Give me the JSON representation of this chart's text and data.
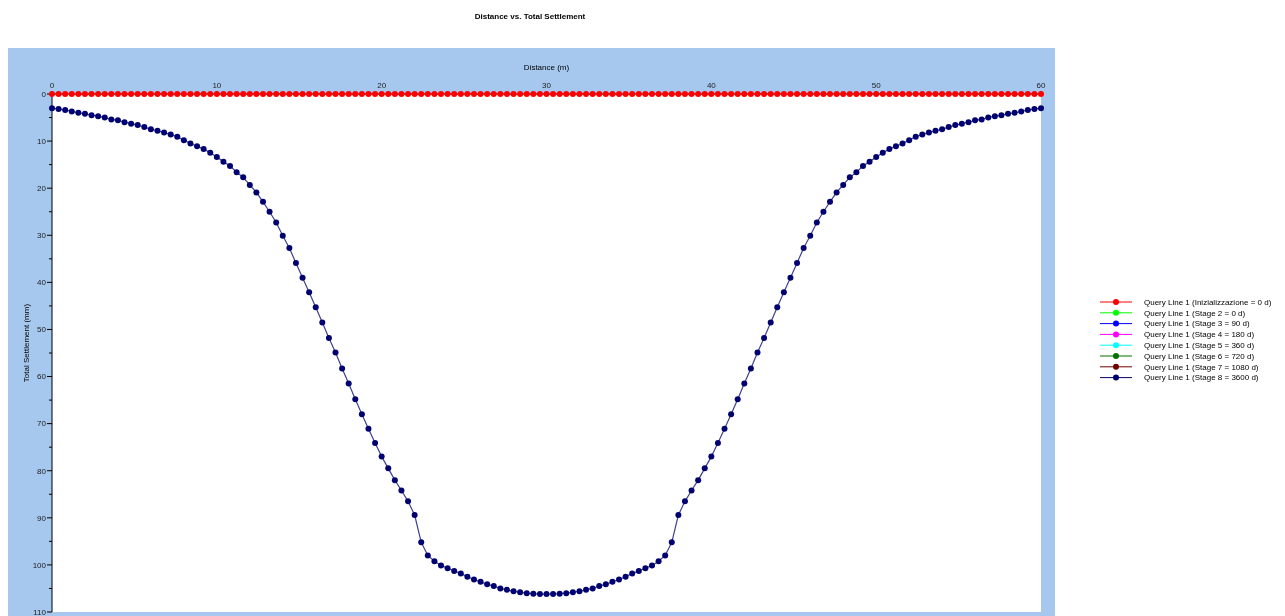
{
  "chart_data": {
    "type": "line",
    "title": "Distance vs. Total Settlement",
    "xlabel": "Distance (m)",
    "ylabel": "Total Settlement (mm)",
    "xlim": [
      0,
      60
    ],
    "xticks": [
      0,
      10,
      20,
      30,
      40,
      50,
      60
    ],
    "ylim": [
      110,
      0
    ],
    "yticks": [
      0,
      {
        "value": 5,
        "label": null
      },
      10,
      {
        "value": 15,
        "label": null
      },
      20,
      {
        "value": 25,
        "label": null
      },
      30,
      {
        "value": 35,
        "label": null
      },
      40,
      {
        "value": 45,
        "label": null
      },
      50,
      {
        "value": 55,
        "label": null
      },
      60,
      {
        "value": 65,
        "label": null
      },
      70,
      {
        "value": 75,
        "label": null
      },
      80,
      {
        "value": 85,
        "label": null
      },
      90,
      {
        "value": 95,
        "label": null
      },
      100,
      {
        "value": 105,
        "label": null
      },
      110
    ],
    "x": [
      0,
      0.4,
      0.8,
      1.2,
      1.6,
      2.0,
      2.4,
      2.8,
      3.2,
      3.6,
      4.0,
      4.4,
      4.8,
      5.2,
      5.6,
      6.0,
      6.4,
      6.8,
      7.2,
      7.6,
      8.0,
      8.4,
      8.8,
      9.2,
      9.6,
      10.0,
      10.4,
      10.8,
      11.2,
      11.6,
      12.0,
      12.4,
      12.8,
      13.2,
      13.6,
      14.0,
      14.4,
      14.8,
      15.2,
      15.6,
      16.0,
      16.4,
      16.8,
      17.2,
      17.6,
      18.0,
      18.4,
      18.8,
      19.2,
      19.6,
      20.0,
      20.4,
      20.8,
      21.2,
      21.6,
      22.0,
      22.4,
      22.8,
      23.2,
      23.6,
      24.0,
      24.4,
      24.8,
      25.2,
      25.6,
      26.0,
      26.4,
      26.8,
      27.2,
      27.6,
      28.0,
      28.4,
      28.8,
      29.2,
      29.6,
      30.0,
      30.4,
      30.8,
      31.2,
      31.6,
      32.0,
      32.4,
      32.8,
      33.2,
      33.6,
      34.0,
      34.4,
      34.8,
      35.2,
      35.6,
      36.0,
      36.4,
      36.8,
      37.2,
      37.6,
      38.0,
      38.4,
      38.8,
      39.2,
      39.6,
      40.0,
      40.4,
      40.8,
      41.2,
      41.6,
      42.0,
      42.4,
      42.8,
      43.2,
      43.6,
      44.0,
      44.4,
      44.8,
      45.2,
      45.6,
      46.0,
      46.4,
      46.8,
      47.2,
      47.6,
      48.0,
      48.4,
      48.8,
      49.2,
      49.6,
      50.0,
      50.4,
      50.8,
      51.2,
      51.6,
      52.0,
      52.4,
      52.8,
      53.2,
      53.6,
      54.0,
      54.4,
      54.8,
      55.2,
      55.6,
      56.0,
      56.4,
      56.8,
      57.2,
      57.6,
      58.0,
      58.4,
      58.8,
      59.2,
      59.6,
      60.0
    ],
    "marker": "circle",
    "line_style": "solid",
    "grid": false,
    "legend": "right",
    "series": [
      {
        "name": "Query Line 1 (Inizializzazione = 0 d)",
        "color": "#ff0000",
        "values": [
          0,
          0,
          0,
          0,
          0,
          0,
          0,
          0,
          0,
          0,
          0,
          0,
          0,
          0,
          0,
          0,
          0,
          0,
          0,
          0,
          0,
          0,
          0,
          0,
          0,
          0,
          0,
          0,
          0,
          0,
          0,
          0,
          0,
          0,
          0,
          0,
          0,
          0,
          0,
          0,
          0,
          0,
          0,
          0,
          0,
          0,
          0,
          0,
          0,
          0,
          0,
          0,
          0,
          0,
          0,
          0,
          0,
          0,
          0,
          0,
          0,
          0,
          0,
          0,
          0,
          0,
          0,
          0,
          0,
          0,
          0,
          0,
          0,
          0,
          0,
          0,
          0,
          0,
          0,
          0,
          0,
          0,
          0,
          0,
          0,
          0,
          0,
          0,
          0,
          0,
          0,
          0,
          0,
          0,
          0,
          0,
          0,
          0,
          0,
          0,
          0,
          0,
          0,
          0,
          0,
          0,
          0,
          0,
          0,
          0,
          0,
          0,
          0,
          0,
          0,
          0,
          0,
          0,
          0,
          0,
          0,
          0,
          0,
          0,
          0,
          0,
          0,
          0,
          0,
          0,
          0,
          0,
          0,
          0,
          0,
          0,
          0,
          0,
          0,
          0,
          0,
          0,
          0,
          0,
          0,
          0,
          0,
          0,
          0,
          0,
          0
        ]
      },
      {
        "name": "Query Line 1 (Stage 2 = 0 d)",
        "color": "#00ff00",
        "values": [
          null,
          null,
          null,
          null,
          null,
          null,
          null,
          null,
          null,
          null,
          null,
          null,
          null,
          null,
          null,
          null,
          null,
          null,
          null,
          null,
          null,
          null,
          null,
          null,
          null,
          null,
          null,
          null,
          null,
          null,
          null,
          null,
          null,
          null,
          null,
          null,
          null,
          null,
          null,
          null,
          null,
          null,
          null,
          null,
          null,
          null,
          null,
          null,
          null,
          null,
          null,
          null,
          null,
          null,
          null,
          null,
          null,
          null,
          null,
          null,
          null,
          null,
          null,
          null,
          null,
          null,
          null,
          null,
          null,
          null,
          null,
          null,
          null,
          null,
          null,
          null,
          null,
          null,
          null,
          null,
          null,
          null,
          null,
          null,
          null,
          null,
          null,
          null,
          null,
          null,
          null,
          null,
          null,
          null,
          null,
          null,
          null,
          null,
          null,
          null,
          null,
          null,
          null,
          null,
          null,
          null,
          null,
          null,
          null,
          null,
          null,
          null,
          null,
          null,
          null,
          null,
          null,
          null,
          null,
          null,
          null,
          null,
          null,
          null,
          null,
          null,
          null,
          null,
          null,
          null,
          null,
          null,
          null,
          null,
          null,
          null,
          null,
          null,
          null,
          null,
          null,
          null,
          null,
          null,
          null,
          null,
          null,
          null,
          null,
          null,
          null
        ]
      },
      {
        "name": "Query Line 1 (Stage 3 = 90 d)",
        "color": "#0000ff",
        "values": [
          null,
          null,
          null,
          null,
          null,
          null,
          null,
          null,
          null,
          null,
          null,
          null,
          null,
          null,
          null,
          null,
          null,
          null,
          null,
          null,
          null,
          null,
          null,
          null,
          null,
          null,
          null,
          null,
          null,
          null,
          null,
          null,
          null,
          null,
          null,
          null,
          null,
          null,
          null,
          null,
          null,
          null,
          null,
          null,
          null,
          null,
          null,
          null,
          null,
          null,
          null,
          null,
          null,
          null,
          null,
          null,
          null,
          null,
          null,
          null,
          null,
          null,
          null,
          null,
          null,
          null,
          null,
          null,
          null,
          null,
          null,
          null,
          null,
          null,
          null,
          null,
          null,
          null,
          null,
          null,
          null,
          null,
          null,
          null,
          null,
          null,
          null,
          null,
          null,
          null,
          null,
          null,
          null,
          null,
          null,
          null,
          null,
          null,
          null,
          null,
          null,
          null,
          null,
          null,
          null,
          null,
          null,
          null,
          null,
          null,
          null,
          null,
          null,
          null,
          null,
          null,
          null,
          null,
          null,
          null,
          null,
          null,
          null,
          null,
          null,
          null,
          null,
          null,
          null,
          null,
          null,
          null,
          null,
          null,
          null,
          null,
          null,
          null,
          null,
          null,
          null,
          null,
          null,
          null,
          null,
          null,
          null,
          null,
          null,
          null,
          null
        ]
      },
      {
        "name": "Query Line 1 (Stage 4 = 180 d)",
        "color": "#ff00ff",
        "values": [
          null,
          null,
          null,
          null,
          null,
          null,
          null,
          null,
          null,
          null,
          null,
          null,
          null,
          null,
          null,
          null,
          null,
          null,
          null,
          null,
          null,
          null,
          null,
          null,
          null,
          null,
          null,
          null,
          null,
          null,
          null,
          null,
          null,
          null,
          null,
          null,
          null,
          null,
          null,
          null,
          null,
          null,
          null,
          null,
          null,
          null,
          null,
          null,
          null,
          null,
          null,
          null,
          null,
          null,
          null,
          null,
          null,
          null,
          null,
          null,
          null,
          null,
          null,
          null,
          null,
          null,
          null,
          null,
          null,
          null,
          null,
          null,
          null,
          null,
          null,
          null,
          null,
          null,
          null,
          null,
          null,
          null,
          null,
          null,
          null,
          null,
          null,
          null,
          null,
          null,
          null,
          null,
          null,
          null,
          null,
          null,
          null,
          null,
          null,
          null,
          null,
          null,
          null,
          null,
          null,
          null,
          null,
          null,
          null,
          null,
          null,
          null,
          null,
          null,
          null,
          null,
          null,
          null,
          null,
          null,
          null,
          null,
          null,
          null,
          null,
          null,
          null,
          null,
          null,
          null,
          null,
          null,
          null,
          null,
          null,
          null,
          null,
          null,
          null,
          null,
          null,
          null,
          null,
          null,
          null,
          null,
          null,
          null,
          null,
          null,
          null
        ]
      },
      {
        "name": "Query Line 1 (Stage 5 = 360 d)",
        "color": "#00ffff",
        "values": [
          null,
          null,
          null,
          null,
          null,
          null,
          null,
          null,
          null,
          null,
          null,
          null,
          null,
          null,
          null,
          null,
          null,
          null,
          null,
          null,
          null,
          null,
          null,
          null,
          null,
          null,
          null,
          null,
          null,
          null,
          null,
          null,
          null,
          null,
          null,
          null,
          null,
          null,
          null,
          null,
          null,
          null,
          null,
          null,
          null,
          null,
          null,
          null,
          null,
          null,
          null,
          null,
          null,
          null,
          null,
          null,
          null,
          null,
          null,
          null,
          null,
          null,
          null,
          null,
          null,
          null,
          null,
          null,
          null,
          null,
          null,
          null,
          null,
          null,
          null,
          null,
          null,
          null,
          null,
          null,
          null,
          null,
          null,
          null,
          null,
          null,
          null,
          null,
          null,
          null,
          null,
          null,
          null,
          null,
          null,
          null,
          null,
          null,
          null,
          null,
          null,
          null,
          null,
          null,
          null,
          null,
          null,
          null,
          null,
          null,
          null,
          null,
          null,
          null,
          null,
          null,
          null,
          null,
          null,
          null,
          null,
          null,
          null,
          null,
          null,
          null,
          null,
          null,
          null,
          null,
          null,
          null,
          null,
          null,
          null,
          null,
          null,
          null,
          null,
          null,
          null,
          null,
          null,
          null,
          null,
          null,
          null,
          null,
          null,
          null,
          null
        ]
      },
      {
        "name": "Query Line 1 (Stage 6 = 720 d)",
        "color": "#007000",
        "values": [
          null,
          null,
          null,
          null,
          null,
          null,
          null,
          null,
          null,
          null,
          null,
          null,
          null,
          null,
          null,
          null,
          null,
          null,
          null,
          null,
          null,
          null,
          null,
          null,
          null,
          null,
          null,
          null,
          null,
          null,
          null,
          null,
          null,
          null,
          null,
          null,
          null,
          null,
          null,
          null,
          null,
          null,
          null,
          null,
          null,
          null,
          null,
          null,
          null,
          null,
          null,
          null,
          null,
          null,
          null,
          null,
          null,
          null,
          null,
          null,
          null,
          null,
          null,
          null,
          null,
          null,
          null,
          null,
          null,
          null,
          null,
          null,
          null,
          null,
          null,
          null,
          null,
          null,
          null,
          null,
          null,
          null,
          null,
          null,
          null,
          null,
          null,
          null,
          null,
          null,
          null,
          null,
          null,
          null,
          null,
          null,
          null,
          null,
          null,
          null,
          null,
          null,
          null,
          null,
          null,
          null,
          null,
          null,
          null,
          null,
          null,
          null,
          null,
          null,
          null,
          null,
          null,
          null,
          null,
          null,
          null,
          null,
          null,
          null,
          null,
          null,
          null,
          null,
          null,
          null,
          null,
          null,
          null,
          null,
          null,
          null,
          null,
          null,
          null,
          null,
          null,
          null,
          null,
          null,
          null,
          null,
          null,
          null,
          null,
          null,
          null
        ]
      },
      {
        "name": "Query Line 1 (Stage 7 = 1080 d)",
        "color": "#700000",
        "values": [
          null,
          null,
          null,
          null,
          null,
          null,
          null,
          null,
          null,
          null,
          null,
          null,
          null,
          null,
          null,
          null,
          null,
          null,
          null,
          null,
          null,
          null,
          null,
          null,
          null,
          null,
          null,
          null,
          null,
          null,
          null,
          null,
          null,
          null,
          null,
          null,
          null,
          null,
          null,
          null,
          null,
          null,
          null,
          null,
          null,
          null,
          null,
          null,
          null,
          null,
          null,
          null,
          null,
          null,
          null,
          null,
          null,
          null,
          null,
          null,
          null,
          null,
          null,
          null,
          null,
          null,
          null,
          null,
          null,
          null,
          null,
          null,
          null,
          null,
          null,
          null,
          null,
          null,
          null,
          null,
          null,
          null,
          null,
          null,
          null,
          null,
          null,
          null,
          null,
          null,
          null,
          null,
          null,
          null,
          null,
          null,
          null,
          null,
          null,
          null,
          null,
          null,
          null,
          null,
          null,
          null,
          null,
          null,
          null,
          null,
          null,
          null,
          null,
          null,
          null,
          null,
          null,
          null,
          null,
          null,
          null,
          null,
          null,
          null,
          null,
          null,
          null,
          null,
          null,
          null,
          null,
          null,
          null,
          null,
          null,
          null,
          null,
          null,
          null,
          null,
          null,
          null,
          null,
          null,
          null,
          null,
          null,
          null,
          null,
          null,
          null
        ]
      },
      {
        "name": "Query Line 1 (Stage 8 = 3600 d)",
        "color": "#000070",
        "values": [
          3.0,
          3.2,
          3.4,
          3.7,
          4.0,
          4.2,
          4.5,
          4.7,
          5.0,
          5.4,
          5.6,
          6.0,
          6.3,
          6.6,
          7.0,
          7.5,
          7.8,
          8.2,
          8.6,
          9.1,
          9.8,
          10.5,
          11.1,
          11.7,
          12.5,
          13.4,
          14.4,
          15.3,
          16.6,
          17.7,
          19.3,
          20.9,
          22.9,
          25.0,
          27.3,
          30.1,
          32.7,
          35.9,
          39.0,
          42.1,
          45.3,
          48.5,
          51.8,
          54.9,
          58.3,
          61.5,
          64.8,
          68.0,
          71.1,
          74.1,
          77.0,
          79.5,
          82.0,
          84.2,
          86.5,
          89.4,
          95.2,
          98.0,
          99.2,
          100.1,
          100.7,
          101.3,
          101.8,
          102.5,
          103.1,
          103.6,
          104.1,
          104.5,
          105.0,
          105.3,
          105.6,
          105.8,
          106.0,
          106.1,
          106.2,
          106.2,
          106.2,
          106.1,
          106.0,
          105.8,
          105.6,
          105.3,
          105.0,
          104.5,
          104.1,
          103.6,
          103.1,
          102.5,
          101.8,
          101.3,
          100.7,
          100.1,
          99.2,
          98.0,
          95.2,
          89.4,
          86.5,
          84.2,
          82.0,
          79.5,
          77.0,
          74.1,
          71.1,
          68.0,
          64.8,
          61.5,
          58.3,
          54.9,
          51.8,
          48.5,
          45.3,
          42.1,
          39.0,
          35.9,
          32.7,
          30.1,
          27.3,
          25.0,
          22.9,
          20.9,
          19.3,
          17.7,
          16.6,
          15.3,
          14.4,
          13.4,
          12.5,
          11.7,
          11.1,
          10.5,
          9.8,
          9.1,
          8.6,
          8.2,
          7.8,
          7.5,
          7.0,
          6.6,
          6.3,
          6.0,
          5.6,
          5.4,
          5.0,
          4.7,
          4.5,
          4.2,
          4.0,
          3.7,
          3.4,
          3.2,
          3.0
        ]
      }
    ]
  }
}
